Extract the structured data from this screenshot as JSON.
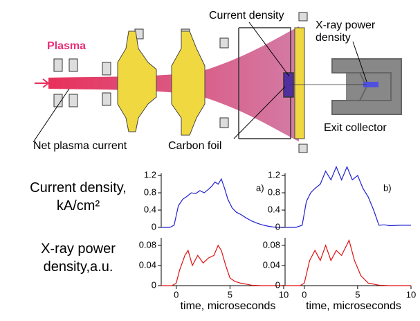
{
  "diagram": {
    "plasma": "Plasma",
    "current_density": "Current density",
    "xray_power_density": "X-ray power density",
    "exit_collector": "Exit collector",
    "net_plasma_current": "Net plasma current",
    "carbon_foil": "Carbon foil"
  },
  "row_labels": [
    "Current density, kA/cm²",
    "X-ray power density,a.u."
  ],
  "chart_data": [
    {
      "type": "line",
      "annotation": "a)",
      "color": "#2020d0",
      "xlim": [
        -1.4,
        10
      ],
      "ylim": [
        0,
        1.25
      ],
      "yticks": [
        0,
        0.4,
        0.8,
        1.2
      ],
      "x": [
        -1.4,
        -0.6,
        -0.2,
        0.2,
        0.6,
        1,
        1.4,
        1.8,
        2.2,
        2.6,
        3,
        3.3,
        3.6,
        3.9,
        4.2,
        4.5,
        4.8,
        5.2,
        5.6,
        6,
        6.5,
        7,
        7.5,
        8,
        8.5,
        9,
        9.5,
        10
      ],
      "values": [
        0,
        0,
        0.05,
        0.5,
        0.65,
        0.72,
        0.8,
        0.78,
        0.85,
        0.8,
        0.88,
        0.95,
        1.05,
        1.0,
        1.12,
        0.9,
        0.65,
        0.45,
        0.35,
        0.3,
        0.22,
        0.15,
        0.1,
        0.06,
        0.03,
        0.01,
        0,
        0
      ]
    },
    {
      "type": "line",
      "annotation": "b)",
      "color": "#2020d0",
      "xlim": [
        -1.8,
        10
      ],
      "ylim": [
        0,
        1.25
      ],
      "yticks": [
        0,
        0.4,
        0.8,
        1.2
      ],
      "x": [
        -1.8,
        -0.8,
        -0.2,
        0.2,
        0.6,
        1,
        1.5,
        2,
        2.5,
        3,
        3.5,
        4,
        4.5,
        5,
        5.5,
        6,
        6.5,
        7,
        7.5,
        8,
        9,
        10
      ],
      "values": [
        0,
        0,
        0.05,
        0.6,
        0.8,
        0.9,
        1.0,
        1.3,
        1.1,
        1.4,
        1.1,
        1.4,
        1.1,
        1.2,
        0.9,
        0.7,
        0.4,
        0.05,
        0.06,
        0.04,
        0.05,
        0.05
      ]
    },
    {
      "type": "line",
      "xlabel": "time, microseconds",
      "color": "#e01010",
      "xlim": [
        -1.4,
        10
      ],
      "ylim": [
        0,
        0.095
      ],
      "yticks": [
        0,
        0.04,
        0.08
      ],
      "xticks": [
        0,
        5,
        10
      ],
      "x": [
        -1.4,
        -0.4,
        0,
        0.3,
        0.8,
        1.1,
        1.5,
        2,
        2.5,
        3,
        3.5,
        3.9,
        4.2,
        4.6,
        5,
        5.5,
        6,
        7,
        8,
        9,
        10
      ],
      "values": [
        0,
        0,
        0.005,
        0.03,
        0.06,
        0.07,
        0.04,
        0.06,
        0.045,
        0.055,
        0.06,
        0.08,
        0.07,
        0.04,
        0.015,
        0.008,
        0.005,
        0.001,
        0,
        0,
        0
      ]
    },
    {
      "type": "line",
      "xlabel": "time, microseconds",
      "color": "#e01010",
      "xlim": [
        -1.8,
        10
      ],
      "ylim": [
        0,
        0.095
      ],
      "yticks": [
        0,
        0.04,
        0.08
      ],
      "xticks": [
        0,
        5,
        10
      ],
      "x": [
        -1.8,
        -0.4,
        0,
        0.5,
        1,
        1.5,
        2,
        2.5,
        3,
        3.5,
        4.2,
        4.7,
        5.3,
        6,
        7,
        8,
        9,
        10
      ],
      "values": [
        0,
        0,
        0.005,
        0.05,
        0.07,
        0.05,
        0.08,
        0.05,
        0.07,
        0.06,
        0.09,
        0.05,
        0.02,
        0.005,
        0.001,
        0,
        0,
        0
      ]
    }
  ]
}
